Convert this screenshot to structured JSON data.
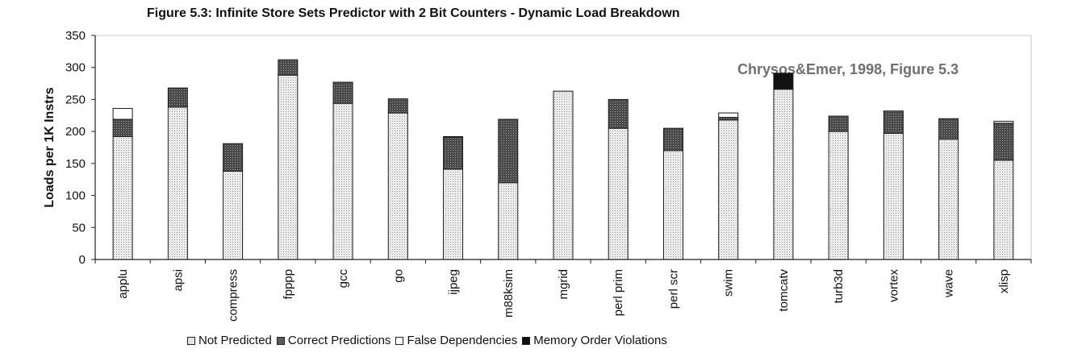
{
  "figure_title": "Figure 5.3: Infinite Store Sets Predictor with 2 Bit Counters - Dynamic Load Breakdown",
  "citation": "Chrysos&Emer, 1998, Figure 5.3",
  "chart_data": {
    "type": "bar",
    "stacked": true,
    "title": "Figure 5.3: Infinite Store Sets Predictor with 2 Bit Counters - Dynamic Load Breakdown",
    "xlabel": "",
    "ylabel": "Loads per 1K Instrs",
    "ylim": [
      0,
      350
    ],
    "yticks": [
      "0",
      "50",
      "100",
      "150",
      "200",
      "250",
      "300",
      "350"
    ],
    "grid": false,
    "legend_position": "bottom",
    "categories": [
      "applu",
      "apsi",
      "compress",
      "fpppp",
      "gcc",
      "go",
      "ijpeg",
      "m88ksim",
      "mgrid",
      "perl prim",
      "perl scr",
      "swim",
      "tomcatv",
      "turb3d",
      "vortex",
      "wave",
      "xlisp"
    ],
    "series": [
      {
        "name": "Not Predicted",
        "color": "#e4e4e4",
        "values": [
          192,
          238,
          138,
          288,
          244,
          229,
          141,
          120,
          263,
          205,
          170,
          218,
          266,
          200,
          197,
          188,
          155
        ]
      },
      {
        "name": "Correct Predictions",
        "color": "#5a5a5a",
        "values": [
          27,
          30,
          43,
          24,
          33,
          22,
          50,
          99,
          0,
          45,
          35,
          4,
          0,
          24,
          35,
          32,
          58
        ]
      },
      {
        "name": "False Dependencies",
        "color": "#ffffff",
        "values": [
          17,
          0,
          0,
          0,
          0,
          0,
          1,
          0,
          0,
          0,
          0,
          7,
          0,
          0,
          0,
          0,
          3
        ]
      },
      {
        "name": "Memory Order Violations",
        "color": "#111111",
        "values": [
          0,
          0,
          0,
          0,
          0,
          0,
          0,
          0,
          0,
          0,
          0,
          0,
          25,
          0,
          0,
          0,
          0
        ]
      }
    ]
  }
}
